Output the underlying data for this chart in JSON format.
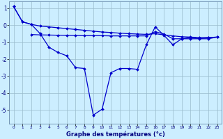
{
  "background_color": "#cceeff",
  "line_color": "#0000cc",
  "xlabel": "Graphe des températures (°c)",
  "x": [
    0,
    1,
    2,
    3,
    4,
    5,
    6,
    7,
    8,
    9,
    10,
    11,
    12,
    13,
    14,
    15,
    16,
    17,
    18,
    19,
    20,
    21,
    22,
    23
  ],
  "line1": [
    1.1,
    0.2,
    0.05,
    -0.05,
    -0.1,
    -0.15,
    -0.2,
    -0.25,
    -0.3,
    -0.35,
    -0.4,
    -0.43,
    -0.47,
    -0.5,
    -0.52,
    -0.54,
    -0.5,
    -0.57,
    -0.63,
    -0.68,
    -0.7,
    -0.73,
    -0.73,
    -0.7
  ],
  "line2": [
    1.1,
    0.2,
    0.05,
    -0.5,
    -1.3,
    -1.6,
    -1.8,
    -2.5,
    -2.55,
    -5.3,
    -4.95,
    -2.8,
    -2.55,
    -2.55,
    -2.6,
    -1.15,
    -0.1,
    -0.6,
    -1.15,
    -0.8,
    -0.72,
    -0.78,
    -0.73,
    -0.7
  ],
  "line3_x": [
    2,
    3,
    4,
    5,
    6,
    7,
    8,
    9,
    10,
    11,
    12,
    13,
    14,
    15,
    16,
    17,
    18,
    19,
    20,
    21,
    22,
    23
  ],
  "line3": [
    -0.55,
    -0.57,
    -0.58,
    -0.59,
    -0.6,
    -0.61,
    -0.62,
    -0.62,
    -0.62,
    -0.63,
    -0.63,
    -0.63,
    -0.63,
    -0.63,
    -0.38,
    -0.52,
    -0.8,
    -0.8,
    -0.8,
    -0.8,
    -0.8,
    -0.7
  ],
  "ylim": [
    -5.8,
    1.4
  ],
  "xlim": [
    -0.5,
    23.5
  ],
  "yticks": [
    1,
    0,
    -1,
    -2,
    -3,
    -4,
    -5
  ],
  "xticks": [
    0,
    1,
    2,
    3,
    4,
    5,
    6,
    7,
    8,
    9,
    10,
    11,
    12,
    13,
    14,
    15,
    16,
    17,
    18,
    19,
    20,
    21,
    22,
    23
  ]
}
